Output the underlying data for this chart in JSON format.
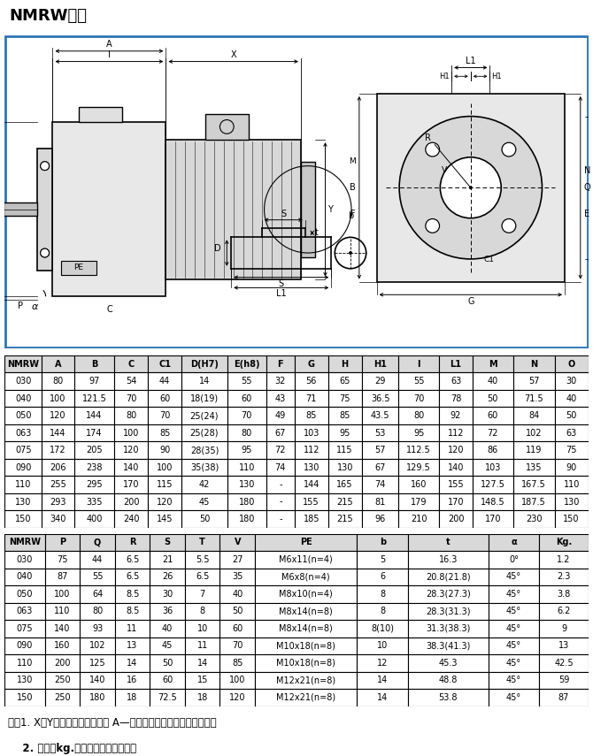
{
  "title": "NMRW尺寸",
  "diagram_border_color": "#2e75b6",
  "table1_headers": [
    "NMRW",
    "A",
    "B",
    "C",
    "C1",
    "D(H7)",
    "E(h8)",
    "F",
    "G",
    "H",
    "H1",
    "I",
    "L1",
    "M",
    "N",
    "O"
  ],
  "table1_data": [
    [
      "030",
      "80",
      "97",
      "54",
      "44",
      "14",
      "55",
      "32",
      "56",
      "65",
      "29",
      "55",
      "63",
      "40",
      "57",
      "30"
    ],
    [
      "040",
      "100",
      "121.5",
      "70",
      "60",
      "18(19)",
      "60",
      "43",
      "71",
      "75",
      "36.5",
      "70",
      "78",
      "50",
      "71.5",
      "40"
    ],
    [
      "050",
      "120",
      "144",
      "80",
      "70",
      "25(24)",
      "70",
      "49",
      "85",
      "85",
      "43.5",
      "80",
      "92",
      "60",
      "84",
      "50"
    ],
    [
      "063",
      "144",
      "174",
      "100",
      "85",
      "25(28)",
      "80",
      "67",
      "103",
      "95",
      "53",
      "95",
      "112",
      "72",
      "102",
      "63"
    ],
    [
      "075",
      "172",
      "205",
      "120",
      "90",
      "28(35)",
      "95",
      "72",
      "112",
      "115",
      "57",
      "112.5",
      "120",
      "86",
      "119",
      "75"
    ],
    [
      "090",
      "206",
      "238",
      "140",
      "100",
      "35(38)",
      "110",
      "74",
      "130",
      "130",
      "67",
      "129.5",
      "140",
      "103",
      "135",
      "90"
    ],
    [
      "110",
      "255",
      "295",
      "170",
      "115",
      "42",
      "130",
      "-",
      "144",
      "165",
      "74",
      "160",
      "155",
      "127.5",
      "167.5",
      "110"
    ],
    [
      "130",
      "293",
      "335",
      "200",
      "120",
      "45",
      "180",
      "-",
      "155",
      "215",
      "81",
      "179",
      "170",
      "148.5",
      "187.5",
      "130"
    ],
    [
      "150",
      "340",
      "400",
      "240",
      "145",
      "50",
      "180",
      "-",
      "185",
      "215",
      "96",
      "210",
      "200",
      "170",
      "230",
      "150"
    ]
  ],
  "table2_headers": [
    "NMRW",
    "P",
    "Q",
    "R",
    "S",
    "T",
    "V",
    "PE",
    "b",
    "t",
    "α",
    "Kg."
  ],
  "table2_data": [
    [
      "030",
      "75",
      "44",
      "6.5",
      "21",
      "5.5",
      "27",
      "M6x11(n=4)",
      "5",
      "16.3",
      "0°",
      "1.2"
    ],
    [
      "040",
      "87",
      "55",
      "6.5",
      "26",
      "6.5",
      "35",
      "M6x8(n=4)",
      "6",
      "20.8(21.8)",
      "45°",
      "2.3"
    ],
    [
      "050",
      "100",
      "64",
      "8.5",
      "30",
      "7",
      "40",
      "M8x10(n=4)",
      "8",
      "28.3(27.3)",
      "45°",
      "3.8"
    ],
    [
      "063",
      "110",
      "80",
      "8.5",
      "36",
      "8",
      "50",
      "M8x14(n=8)",
      "8",
      "28.3(31.3)",
      "45°",
      "6.2"
    ],
    [
      "075",
      "140",
      "93",
      "11",
      "40",
      "10",
      "60",
      "M8x14(n=8)",
      "8(10)",
      "31.3(38.3)",
      "45°",
      "9"
    ],
    [
      "090",
      "160",
      "102",
      "13",
      "45",
      "11",
      "70",
      "M10x18(n=8)",
      "10",
      "38.3(41.3)",
      "45°",
      "13"
    ],
    [
      "110",
      "200",
      "125",
      "14",
      "50",
      "14",
      "85",
      "M10x18(n=8)",
      "12",
      "45.3",
      "45°",
      "42.5"
    ],
    [
      "130",
      "250",
      "140",
      "16",
      "60",
      "15",
      "100",
      "M12x21(n=8)",
      "14",
      "48.8",
      "45°",
      "59"
    ],
    [
      "150",
      "250",
      "180",
      "18",
      "72.5",
      "18",
      "120",
      "M12x21(n=8)",
      "14",
      "53.8",
      "45°",
      "87"
    ]
  ],
  "note1": "注：1. X、Y尺寸参见本公司样本 A—《通用电机》篇中的尺寸部分；",
  "note2": "    2. 重量（kg.）不包含电机的重量。",
  "header_bg": "#d9d9d9",
  "border_color": "#000000",
  "text_color": "#000000"
}
